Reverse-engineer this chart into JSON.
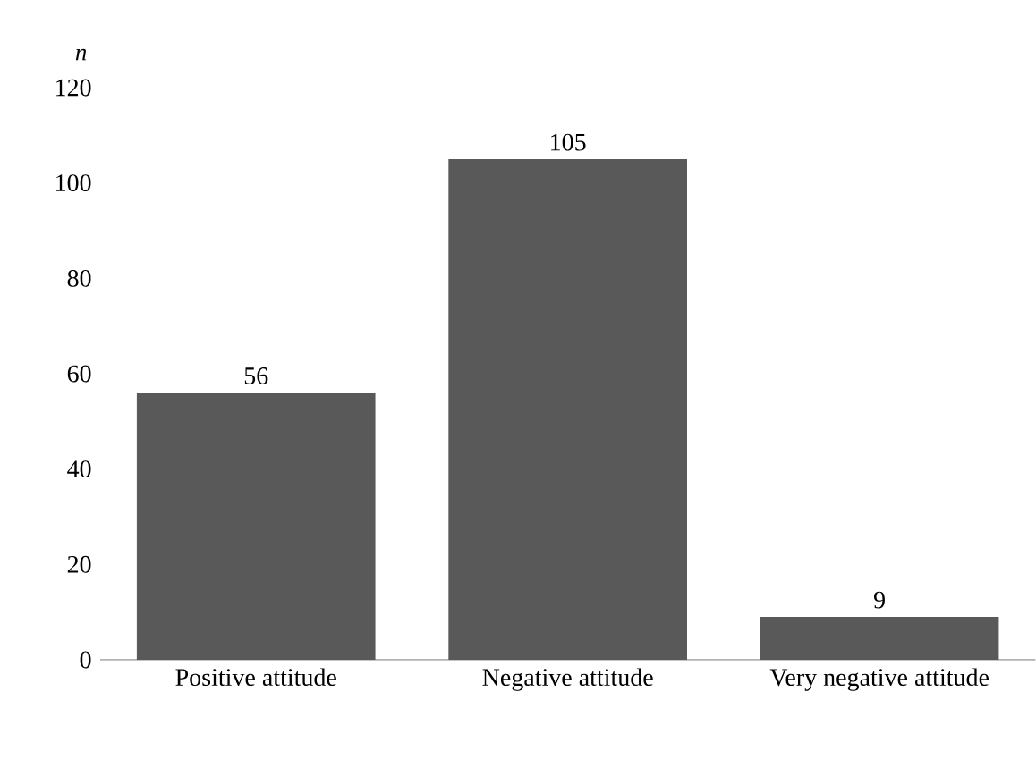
{
  "chart_data": {
    "type": "bar",
    "ylabel": "n",
    "categories": [
      "Positive attitude",
      "Negative attitude",
      "Very negative attitude"
    ],
    "values": [
      56,
      105,
      9
    ],
    "color": "#595959",
    "ylim": [
      0,
      120
    ],
    "yticks": [
      0,
      20,
      40,
      60,
      80,
      100,
      120
    ],
    "data_labels": true
  }
}
